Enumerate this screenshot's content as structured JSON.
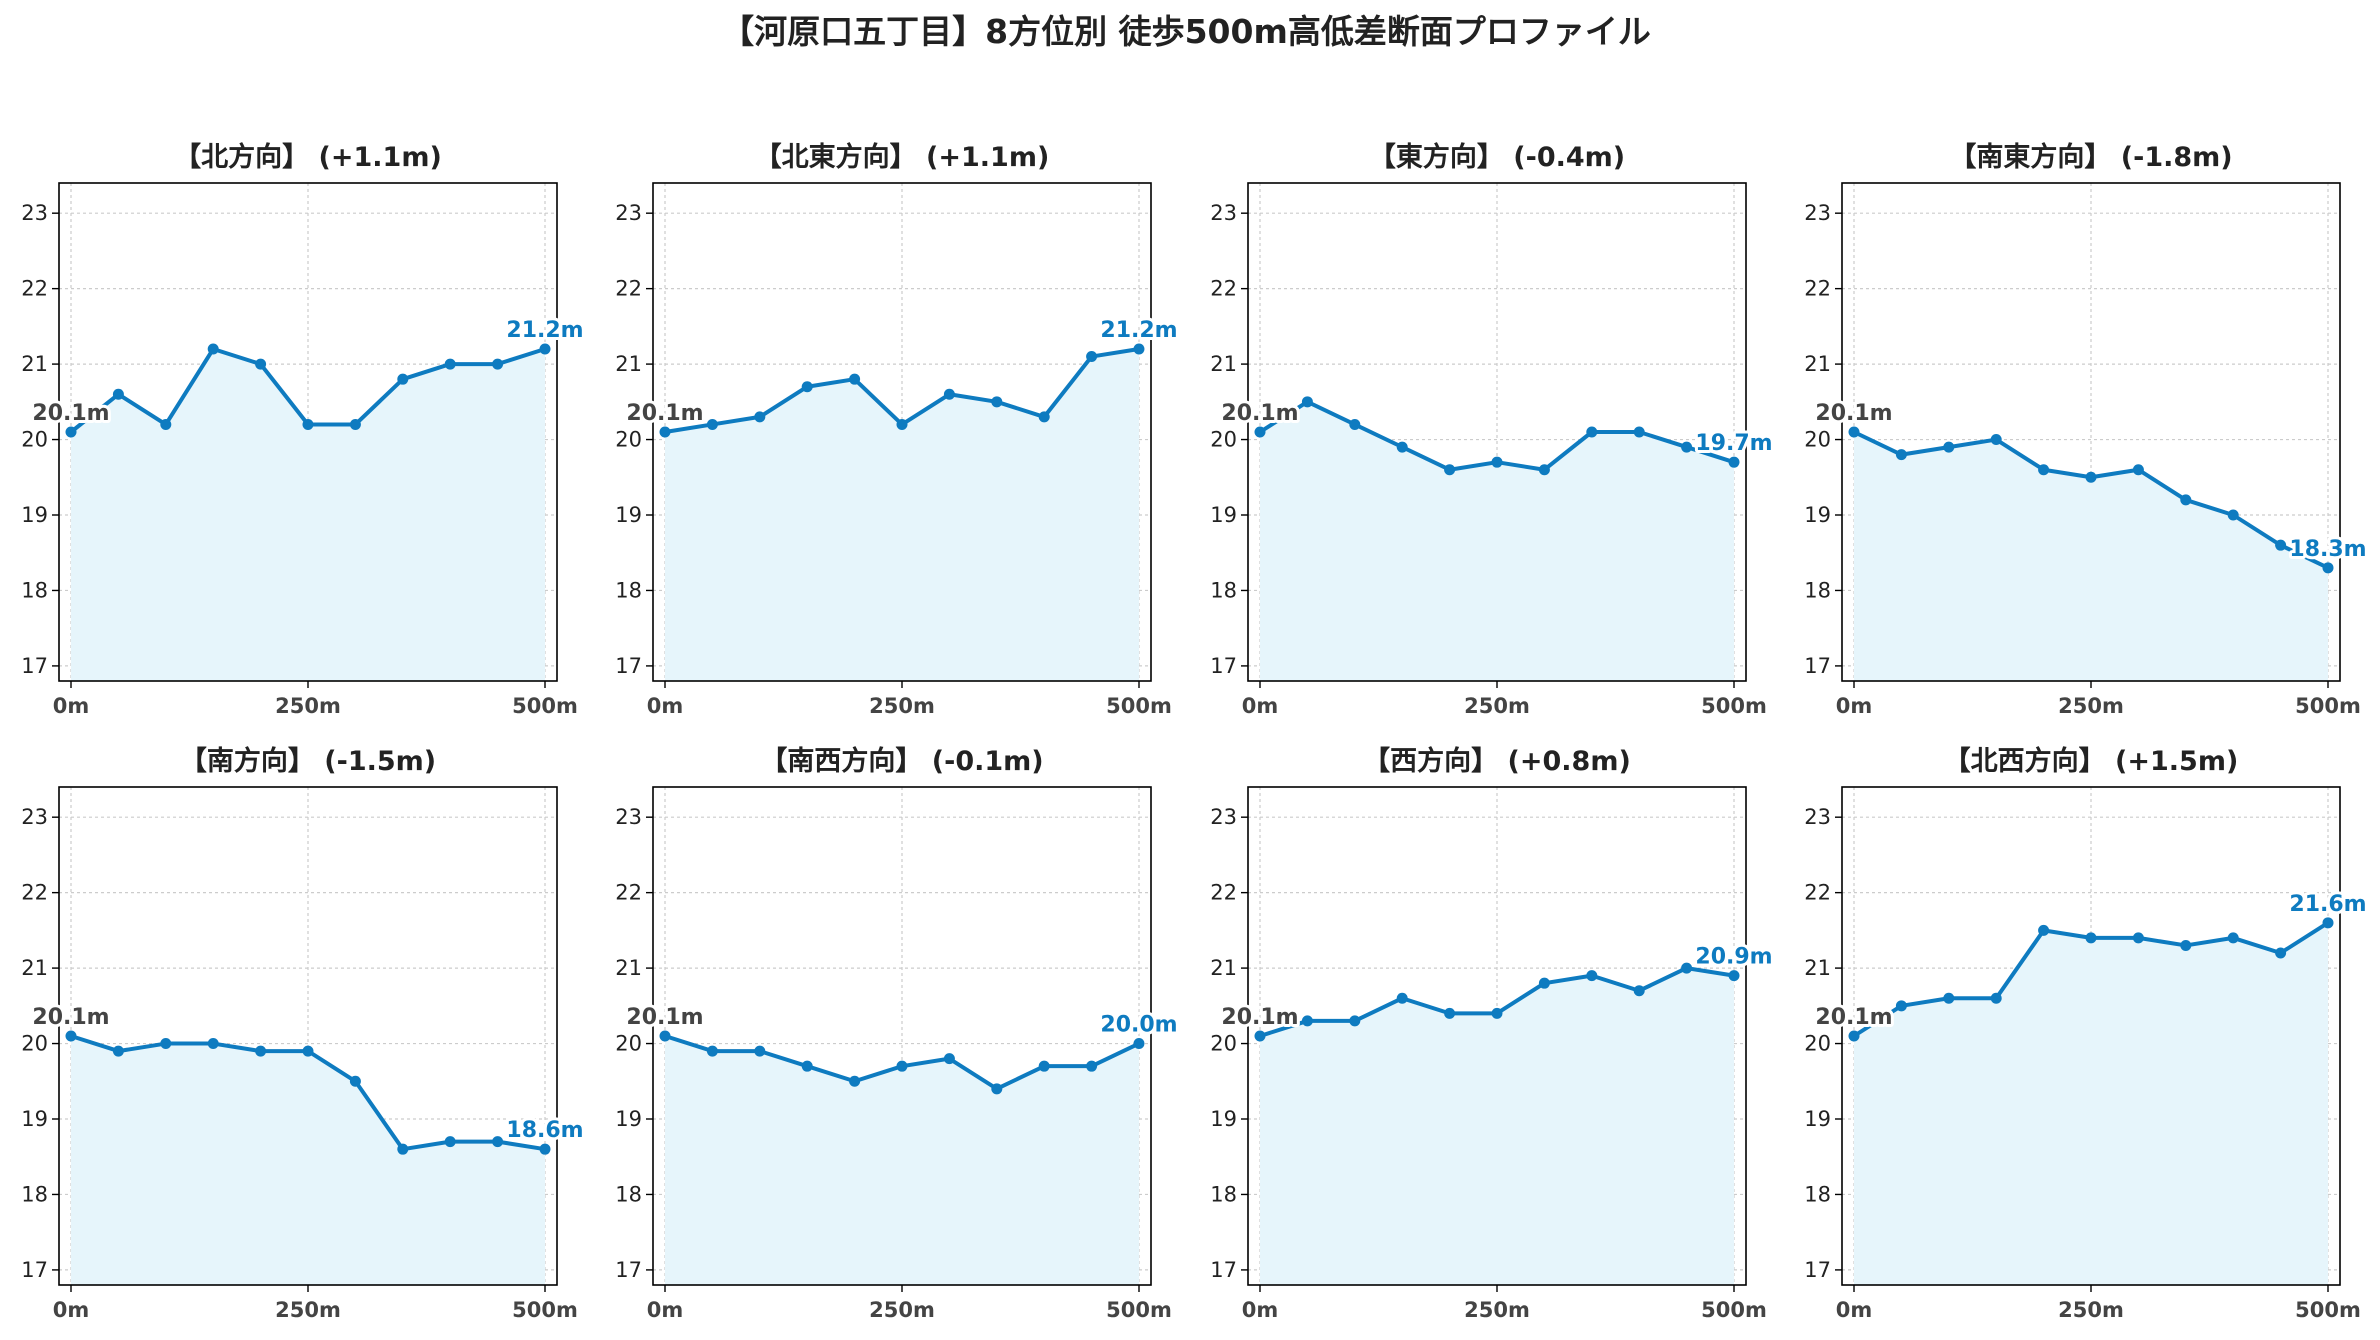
{
  "title": "【河原口五丁目】8方位別 徒歩500m高低差断面プロファイル",
  "colors": {
    "line": "#0e7bc0",
    "fill": "#e6f5fb",
    "grid": "#cccccc",
    "start_label": "#444444"
  },
  "chart_data": [
    {
      "type": "area",
      "title": "【北方向】 (+1.1m)",
      "x": [
        0,
        50,
        100,
        150,
        200,
        250,
        300,
        350,
        400,
        450,
        500
      ],
      "y": [
        20.1,
        20.6,
        20.2,
        21.2,
        21.0,
        20.2,
        20.2,
        20.8,
        21.0,
        21.0,
        21.2
      ],
      "start_label": "20.1m",
      "end_label": "21.2m"
    },
    {
      "type": "area",
      "title": "【北東方向】 (+1.1m)",
      "x": [
        0,
        50,
        100,
        150,
        200,
        250,
        300,
        350,
        400,
        450,
        500
      ],
      "y": [
        20.1,
        20.2,
        20.3,
        20.7,
        20.8,
        20.2,
        20.6,
        20.5,
        20.3,
        21.1,
        21.2
      ],
      "start_label": "20.1m",
      "end_label": "21.2m"
    },
    {
      "type": "area",
      "title": "【東方向】 (-0.4m)",
      "x": [
        0,
        50,
        100,
        150,
        200,
        250,
        300,
        350,
        400,
        450,
        500
      ],
      "y": [
        20.1,
        20.5,
        20.2,
        19.9,
        19.6,
        19.7,
        19.6,
        20.1,
        20.1,
        19.9,
        19.7
      ],
      "start_label": "20.1m",
      "end_label": "19.7m"
    },
    {
      "type": "area",
      "title": "【南東方向】 (-1.8m)",
      "x": [
        0,
        50,
        100,
        150,
        200,
        250,
        300,
        350,
        400,
        450,
        500
      ],
      "y": [
        20.1,
        19.8,
        19.9,
        20.0,
        19.6,
        19.5,
        19.6,
        19.2,
        19.0,
        18.6,
        18.3
      ],
      "start_label": "20.1m",
      "end_label": "18.3m"
    },
    {
      "type": "area",
      "title": "【南方向】 (-1.5m)",
      "x": [
        0,
        50,
        100,
        150,
        200,
        250,
        300,
        350,
        400,
        450,
        500
      ],
      "y": [
        20.1,
        19.9,
        20.0,
        20.0,
        19.9,
        19.9,
        19.5,
        18.6,
        18.7,
        18.7,
        18.6
      ],
      "start_label": "20.1m",
      "end_label": "18.6m"
    },
    {
      "type": "area",
      "title": "【南西方向】 (-0.1m)",
      "x": [
        0,
        50,
        100,
        150,
        200,
        250,
        300,
        350,
        400,
        450,
        500
      ],
      "y": [
        20.1,
        19.9,
        19.9,
        19.7,
        19.5,
        19.7,
        19.8,
        19.4,
        19.7,
        19.7,
        20.0
      ],
      "start_label": "20.1m",
      "end_label": "20.0m"
    },
    {
      "type": "area",
      "title": "【西方向】 (+0.8m)",
      "x": [
        0,
        50,
        100,
        150,
        200,
        250,
        300,
        350,
        400,
        450,
        500
      ],
      "y": [
        20.1,
        20.3,
        20.3,
        20.6,
        20.4,
        20.4,
        20.8,
        20.9,
        20.7,
        21.0,
        20.9
      ],
      "start_label": "20.1m",
      "end_label": "20.9m"
    },
    {
      "type": "area",
      "title": "【北西方向】 (+1.5m)",
      "x": [
        0,
        50,
        100,
        150,
        200,
        250,
        300,
        350,
        400,
        450,
        500
      ],
      "y": [
        20.1,
        20.5,
        20.6,
        20.6,
        21.5,
        21.4,
        21.4,
        21.3,
        21.4,
        21.2,
        21.6
      ],
      "start_label": "20.1m",
      "end_label": "21.6m"
    }
  ],
  "axes": {
    "xlim": [
      0,
      500
    ],
    "ylim": [
      16.8,
      23.4
    ],
    "yticks": [
      17,
      18,
      19,
      20,
      21,
      22,
      23
    ],
    "xticks": [
      0,
      250,
      500
    ],
    "xtick_labels": [
      "0m",
      "250m",
      "500m"
    ],
    "grid": true
  }
}
